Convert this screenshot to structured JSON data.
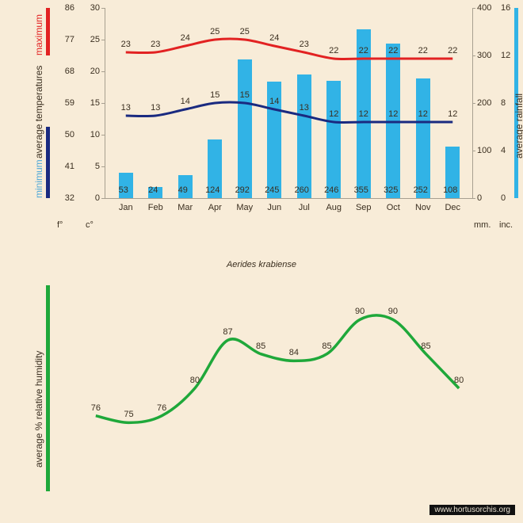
{
  "subtitle": "Aerides krabiense",
  "watermark": "www.hortusorchis.org",
  "months": [
    "Jan",
    "Feb",
    "Mar",
    "Apr",
    "May",
    "Jun",
    "Jul",
    "Aug",
    "Sep",
    "Oct",
    "Nov",
    "Dec"
  ],
  "top_chart": {
    "max_temp_c": [
      23,
      23,
      24,
      25,
      25,
      24,
      23,
      22,
      22,
      22,
      22,
      22
    ],
    "min_temp_c": [
      13,
      13,
      14,
      15,
      15,
      14,
      13,
      12,
      12,
      12,
      12,
      12
    ],
    "rainfall_mm": [
      53,
      24,
      49,
      124,
      292,
      245,
      260,
      246,
      355,
      325,
      252,
      108
    ],
    "rain_ylim": [
      0,
      400
    ],
    "temp_c_ylim": [
      0,
      30
    ],
    "temp_f_ylim": [
      32,
      86
    ],
    "rain_inc_ylim": [
      0,
      16
    ],
    "c_ticks": [
      0,
      5,
      10,
      15,
      20,
      25,
      30
    ],
    "f_ticks": [
      32,
      41,
      50,
      59,
      68,
      77,
      86
    ],
    "mm_ticks": [
      0,
      100,
      200,
      300,
      400
    ],
    "inc_ticks": [
      0,
      4,
      8,
      12,
      16
    ],
    "colors": {
      "max_line": "#e22222",
      "min_line": "#1a2a80",
      "bar": "#31b3e6",
      "axis": "#958a75"
    },
    "left_labels": {
      "minimum": "minimum",
      "average_temperatures": "average  temperatures",
      "maximum": "maximum"
    },
    "right_label": "average rainfall",
    "unit_f": "f°",
    "unit_c": "c°",
    "unit_mm": "mm.",
    "unit_inc": "inc."
  },
  "bot_chart": {
    "humidity": [
      76,
      75,
      76,
      80,
      87,
      85,
      84,
      85,
      90,
      90,
      85,
      80
    ],
    "color": "#1fa83a",
    "left_label": "average %  relative humidity"
  }
}
